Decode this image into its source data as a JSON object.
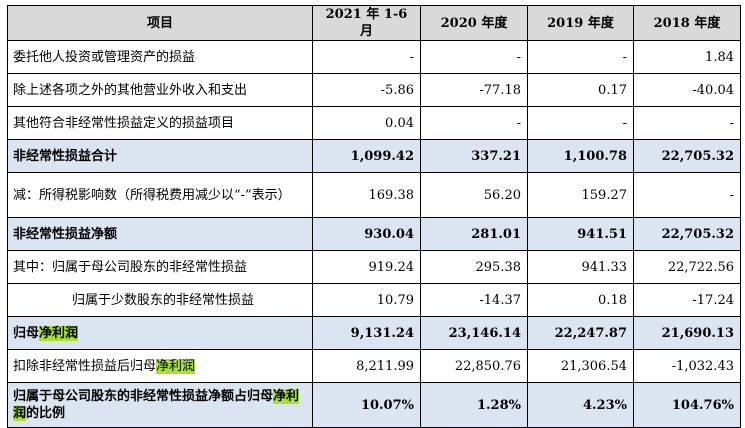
{
  "header": [
    "项目",
    "2021 年 1-6 月",
    "2020 年度",
    "2019 年度",
    "2018 年度"
  ],
  "rows": [
    {
      "label": "委托他人投资或管理资产的损益",
      "values": [
        "-",
        "-",
        "-",
        "1.84"
      ]
    },
    {
      "label": "除上述各项之外的其他营业外收入和支出",
      "values": [
        "-5.86",
        "-77.18",
        "0.17",
        "-40.04"
      ]
    },
    {
      "label": "其他符合非经常性损益定义的损益项目",
      "values": [
        "0.04",
        "-",
        "-",
        "-"
      ]
    },
    {
      "label": "非经常性损益合计",
      "values": [
        "1,099.42",
        "337.21",
        "1,100.78",
        "22,705.32"
      ]
    },
    {
      "label": "减：所得税影响数（所得税费用减少以“-”表示）",
      "values": [
        "169.38",
        "56.20",
        "159.27",
        "-"
      ]
    },
    {
      "label": "非经常性损益净额",
      "values": [
        "930.04",
        "281.01",
        "941.51",
        "22,705.32"
      ]
    },
    {
      "label": "其中：归属于母公司股东的非经常性损益",
      "values": [
        "919.24",
        "295.38",
        "941.33",
        "22,722.56"
      ]
    },
    {
      "label": "归属于少数股东的非经常性损益",
      "values": [
        "10.79",
        "-14.37",
        "0.18",
        "-17.24"
      ]
    },
    {
      "label_pre": "归母",
      "label_hl": "净利润",
      "label_post": "",
      "values": [
        "9,131.24",
        "23,146.14",
        "22,247.87",
        "21,690.13"
      ]
    },
    {
      "label_pre": "扣除非经常性损益后归母",
      "label_hl": "净利润",
      "label_post": "",
      "values": [
        "8,211.99",
        "22,850.76",
        "21,306.54",
        "-1,032.43"
      ]
    },
    {
      "label_pre": "归属于母公司股东的非经常性损益净额占归母",
      "label_hl": "净利润",
      "label_post": "的比例",
      "values": [
        "10.07%",
        "1.28%",
        "4.23%",
        "104.76%"
      ]
    }
  ],
  "colors": {
    "header_bg": "#d9d9d9",
    "bold_row_bg": "#dbe5f1",
    "highlight": "#a6e22e"
  }
}
